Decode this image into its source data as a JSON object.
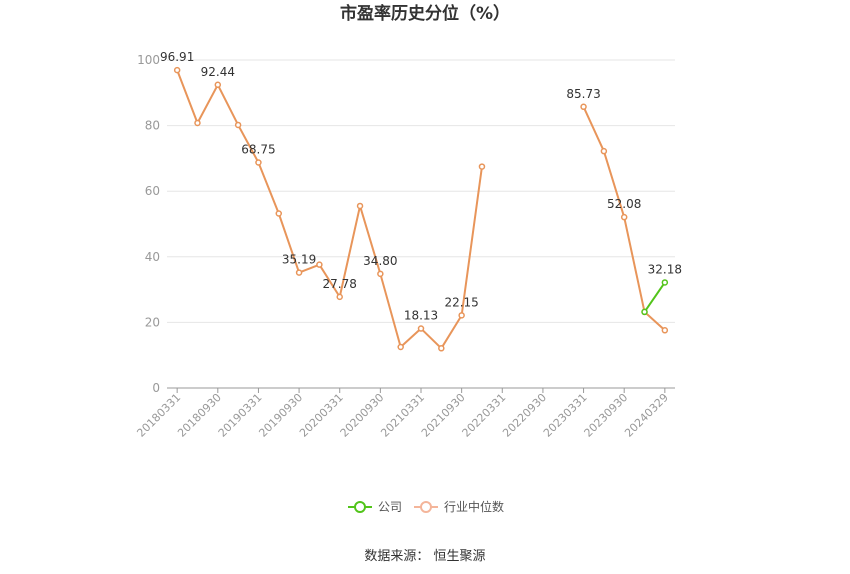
{
  "chart_data": {
    "type": "line",
    "title": "市盈率历史分位（%）",
    "ylim": [
      0,
      100
    ],
    "yticks": [
      0,
      20,
      40,
      60,
      80,
      100
    ],
    "x": [
      "20180331",
      "20180630",
      "20180930",
      "20181231",
      "20190331",
      "20190630",
      "20190930",
      "20191231",
      "20200331",
      "20200630",
      "20200930",
      "20201231",
      "20210331",
      "20210630",
      "20210930",
      "20211231",
      "20220331",
      "20220630",
      "20220930",
      "20221231",
      "20230331",
      "20230630",
      "20230930",
      "20231231",
      "20240329"
    ],
    "xtick_labels": [
      "20180331",
      "20180930",
      "20190331",
      "20190930",
      "20200331",
      "20200930",
      "20210331",
      "20210930",
      "20220331",
      "20220930",
      "20230331",
      "20230930",
      "20240329"
    ],
    "series": [
      {
        "name": "公司",
        "color": "#52c41a",
        "values": [
          null,
          null,
          null,
          null,
          null,
          null,
          null,
          null,
          null,
          null,
          null,
          null,
          null,
          null,
          null,
          null,
          null,
          null,
          null,
          null,
          null,
          null,
          null,
          23.2,
          32.18
        ],
        "labels": [
          null,
          null,
          null,
          null,
          null,
          null,
          null,
          null,
          null,
          null,
          null,
          null,
          null,
          null,
          null,
          null,
          null,
          null,
          null,
          null,
          null,
          null,
          null,
          null,
          "32.18"
        ]
      },
      {
        "name": "行业中位数",
        "color": "#e8955a",
        "values": [
          96.91,
          80.8,
          92.44,
          80.2,
          68.75,
          53.2,
          35.19,
          37.6,
          27.78,
          55.5,
          34.8,
          12.5,
          18.13,
          12.1,
          22.15,
          67.5,
          null,
          null,
          null,
          null,
          85.73,
          72.2,
          52.08,
          23.2,
          17.6
        ],
        "labels": [
          "96.91",
          null,
          "92.44",
          null,
          "68.75",
          null,
          "35.19",
          null,
          "27.78",
          null,
          "34.80",
          null,
          "18.13",
          null,
          "22.15",
          null,
          null,
          null,
          null,
          null,
          "85.73",
          null,
          "52.08",
          null,
          null
        ]
      }
    ],
    "legend_position": "bottom-center",
    "grid": true
  },
  "source": "数据来源：  恒生聚源"
}
